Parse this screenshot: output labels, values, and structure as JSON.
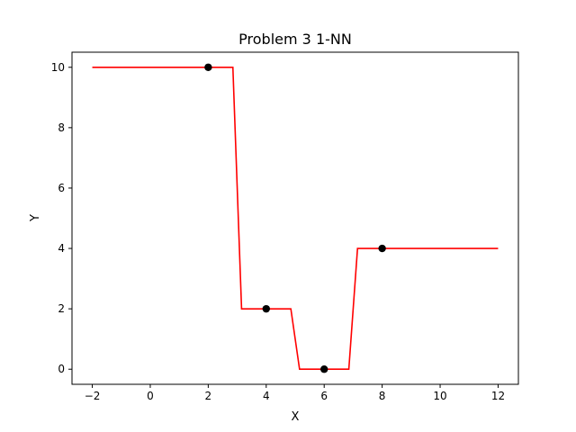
{
  "chart_data": {
    "type": "line",
    "title": "Problem 3 1-NN",
    "xlabel": "X",
    "ylabel": "Y",
    "xlim": [
      -2.7,
      12.7
    ],
    "ylim": [
      -0.5,
      10.5
    ],
    "xticks": [
      -2,
      0,
      2,
      4,
      6,
      8,
      10,
      12
    ],
    "yticks": [
      0,
      2,
      4,
      6,
      8,
      10
    ],
    "xtick_labels": [
      "−2",
      "0",
      "2",
      "4",
      "6",
      "8",
      "10",
      "12"
    ],
    "ytick_labels": [
      "0",
      "2",
      "4",
      "6",
      "8",
      "10"
    ],
    "grid": false,
    "series": [
      {
        "kind": "line",
        "color": "#ff0000",
        "x": [
          -2,
          2.85,
          3.15,
          4.85,
          5.15,
          6.85,
          7.15,
          12
        ],
        "y": [
          10,
          10,
          2,
          2,
          0,
          0,
          4,
          4
        ]
      },
      {
        "kind": "scatter",
        "color": "#000000",
        "x": [
          2,
          4,
          6,
          8
        ],
        "y": [
          10,
          2,
          0,
          4
        ]
      }
    ]
  }
}
